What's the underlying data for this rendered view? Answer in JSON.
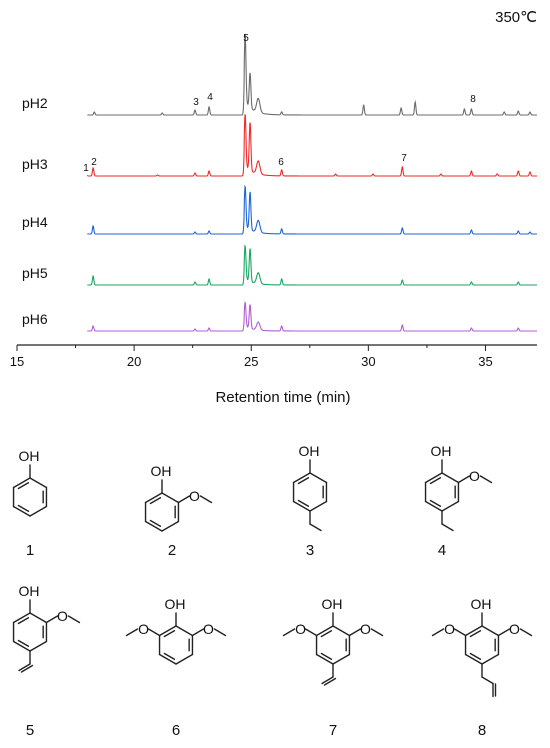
{
  "chart_data": {
    "type": "line",
    "title": "350℃",
    "xlabel": "Retention time (min)",
    "ylabel": "",
    "xlim": [
      15,
      37.2
    ],
    "xticks": [
      15,
      20,
      25,
      30,
      35
    ],
    "grid": false,
    "legend": "inline labels at left of each trace",
    "series": [
      {
        "name": "pH2",
        "color": "#6b6b6b",
        "peaks": [
          [
            18.3,
            3
          ],
          [
            21.2,
            2
          ],
          [
            22.6,
            5
          ],
          [
            23.2,
            8
          ],
          [
            24.74,
            68
          ],
          [
            24.95,
            35
          ],
          [
            25.3,
            14
          ],
          [
            26.3,
            3
          ],
          [
            29.8,
            10
          ],
          [
            31.4,
            7
          ],
          [
            32.0,
            13
          ],
          [
            34.1,
            6
          ],
          [
            34.4,
            6
          ],
          [
            35.8,
            3
          ],
          [
            36.4,
            4
          ],
          [
            36.9,
            3
          ]
        ]
      },
      {
        "name": "pH3",
        "color": "#ee2a2a",
        "peaks": [
          [
            17.95,
            3
          ],
          [
            18.25,
            8
          ],
          [
            21.0,
            1
          ],
          [
            22.6,
            3
          ],
          [
            23.2,
            5
          ],
          [
            24.74,
            52
          ],
          [
            24.95,
            48
          ],
          [
            25.3,
            13
          ],
          [
            26.3,
            6
          ],
          [
            28.6,
            2
          ],
          [
            30.2,
            2
          ],
          [
            31.45,
            9
          ],
          [
            33.1,
            2
          ],
          [
            34.4,
            5
          ],
          [
            35.5,
            2
          ],
          [
            36.4,
            5
          ],
          [
            36.9,
            4
          ]
        ]
      },
      {
        "name": "pH4",
        "color": "#1d65d6",
        "peaks": [
          [
            18.25,
            8
          ],
          [
            22.6,
            2
          ],
          [
            23.2,
            3
          ],
          [
            24.74,
            40
          ],
          [
            24.95,
            38
          ],
          [
            25.3,
            12
          ],
          [
            26.3,
            5
          ],
          [
            31.45,
            6
          ],
          [
            34.4,
            4
          ],
          [
            36.4,
            3
          ],
          [
            36.9,
            2
          ]
        ]
      },
      {
        "name": "pH5",
        "color": "#18a662",
        "peaks": [
          [
            18.25,
            9
          ],
          [
            22.6,
            3
          ],
          [
            23.2,
            6
          ],
          [
            24.74,
            33
          ],
          [
            24.95,
            33
          ],
          [
            25.3,
            11
          ],
          [
            26.3,
            6
          ],
          [
            31.45,
            5
          ],
          [
            34.4,
            3
          ],
          [
            36.4,
            3
          ]
        ]
      },
      {
        "name": "pH6",
        "color": "#b05fd0",
        "peaks": [
          [
            18.25,
            5
          ],
          [
            22.6,
            2
          ],
          [
            23.2,
            3
          ],
          [
            24.74,
            24
          ],
          [
            24.95,
            24
          ],
          [
            25.3,
            8
          ],
          [
            26.3,
            5
          ],
          [
            31.45,
            6
          ],
          [
            34.4,
            3
          ],
          [
            36.4,
            3
          ]
        ]
      }
    ],
    "annotations": [
      {
        "label": "1",
        "x": 17.95,
        "series": "pH3"
      },
      {
        "label": "2",
        "x": 18.3,
        "series": "pH3"
      },
      {
        "label": "3",
        "x": 22.6,
        "series": "pH2"
      },
      {
        "label": "4",
        "x": 23.2,
        "series": "pH2"
      },
      {
        "label": "5",
        "x": 24.74,
        "series": "pH2"
      },
      {
        "label": "6",
        "x": 26.3,
        "series": "pH3"
      },
      {
        "label": "7",
        "x": 31.45,
        "series": "pH3"
      },
      {
        "label": "8",
        "x": 34.2,
        "series": "pH2"
      }
    ]
  },
  "structures": [
    {
      "label": "1",
      "ring_labels": [
        "OH"
      ]
    },
    {
      "label": "2",
      "ring_labels": [
        "OH"
      ]
    },
    {
      "label": "3",
      "ring_labels": [
        "OH"
      ]
    },
    {
      "label": "4",
      "ring_labels": [
        "OH"
      ]
    },
    {
      "label": "5",
      "ring_labels": [
        "OH"
      ]
    },
    {
      "label": "6",
      "ring_labels": [
        "OH"
      ]
    },
    {
      "label": "7",
      "ring_labels": [
        "OH"
      ]
    },
    {
      "label": "8",
      "ring_labels": [
        "OH"
      ]
    }
  ]
}
